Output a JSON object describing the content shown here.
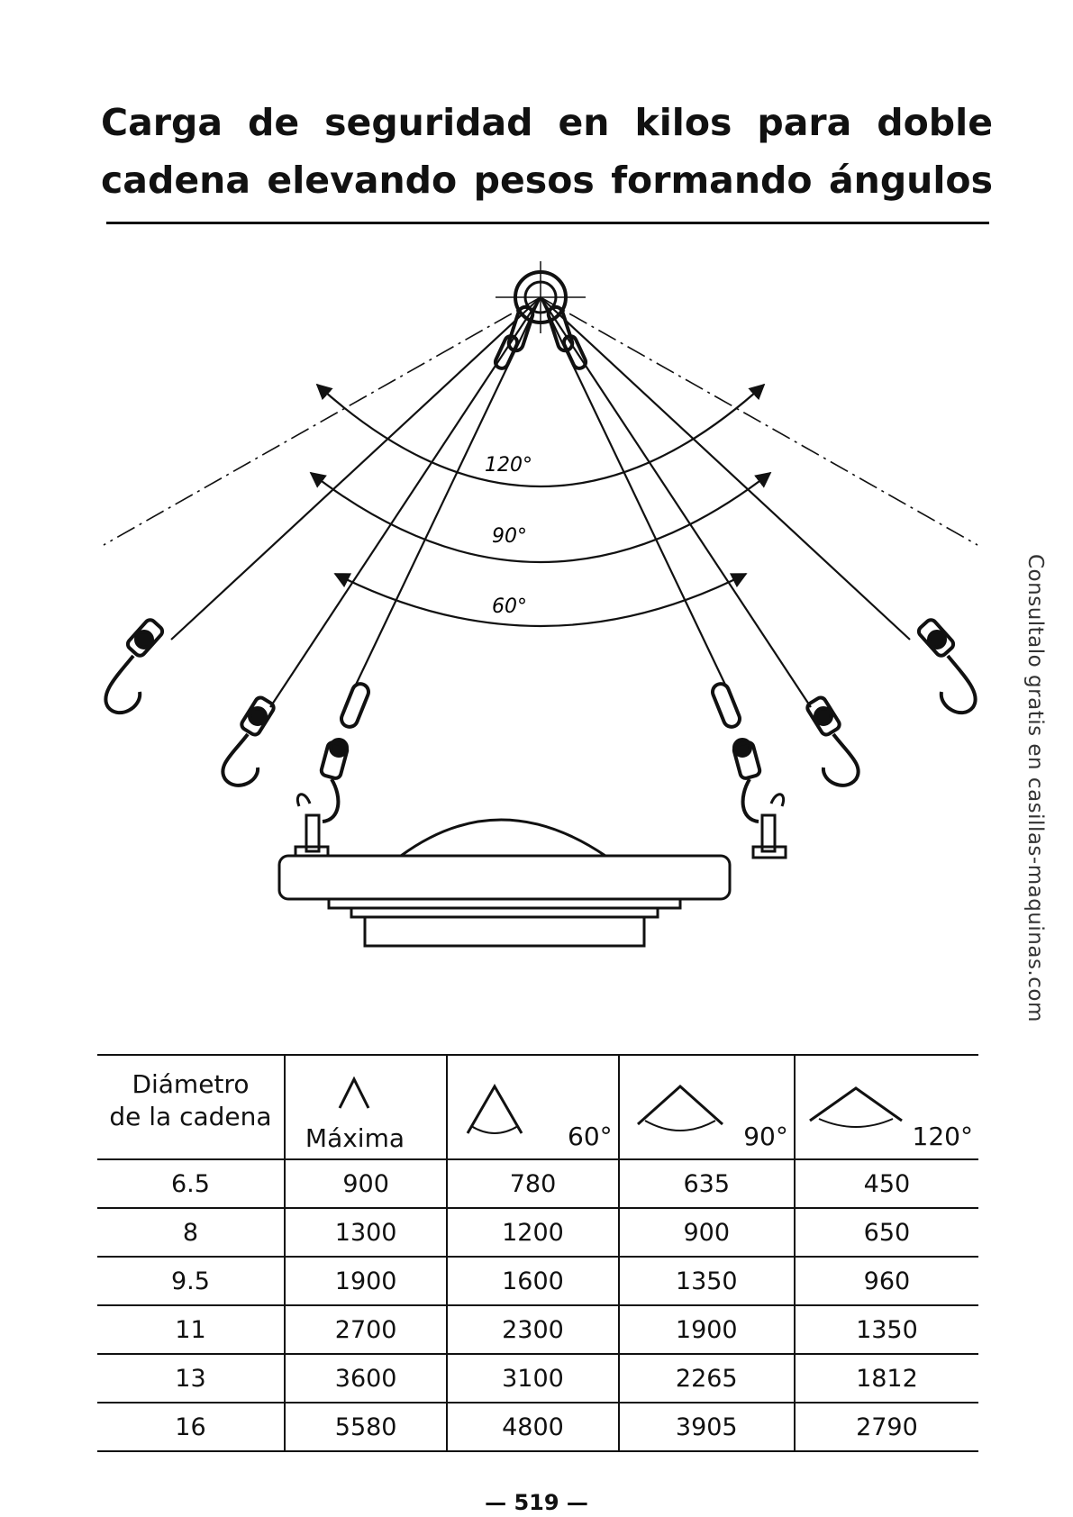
{
  "title": {
    "line1": "Carga de seguridad en kilos para doble",
    "line2": "cadena elevando pesos formando ángulos"
  },
  "diagram": {
    "angles": [
      "120°",
      "90°",
      "60°"
    ],
    "icons": [
      "ring-icon",
      "chain-link-icon",
      "hook-icon",
      "lifting-eyebolt-icon",
      "load-plate-icon"
    ]
  },
  "table": {
    "headers": {
      "diameter_line1": "Diámetro",
      "diameter_line2": "de la cadena",
      "max": "Máxima",
      "a60": "60°",
      "a90": "90°",
      "a120": "120°"
    },
    "rows": [
      [
        "6.5",
        "900",
        "780",
        "635",
        "450"
      ],
      [
        "8",
        "1300",
        "1200",
        "900",
        "650"
      ],
      [
        "9.5",
        "1900",
        "1600",
        "1350",
        "960"
      ],
      [
        "11",
        "2700",
        "2300",
        "1900",
        "1350"
      ],
      [
        "13",
        "3600",
        "3100",
        "2265",
        "1812"
      ],
      [
        "16",
        "5580",
        "4800",
        "3905",
        "2790"
      ]
    ]
  },
  "page_number": "— 519 —",
  "watermark": "Consultalo gratis en casillas-maquinas.com"
}
